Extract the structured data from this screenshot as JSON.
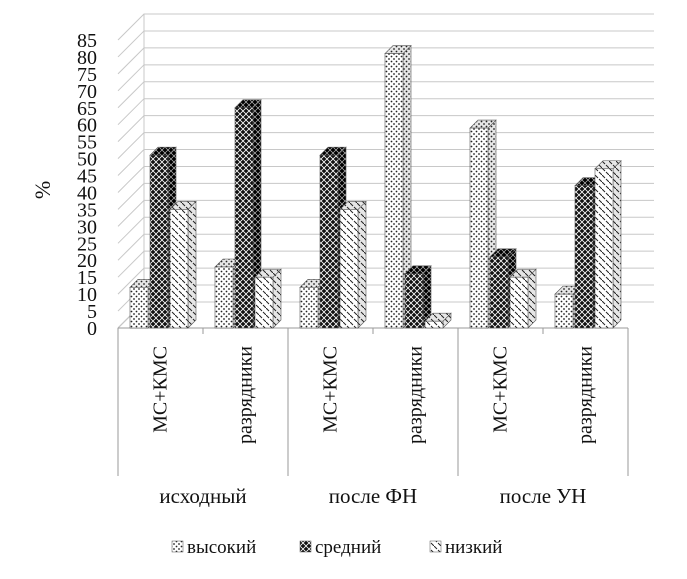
{
  "chart_data": {
    "type": "bar",
    "style": "3d-clustered",
    "ylabel": "%",
    "ylim": [
      0,
      85
    ],
    "yticks": [
      0,
      5,
      10,
      15,
      20,
      25,
      30,
      35,
      40,
      45,
      50,
      55,
      60,
      65,
      70,
      75,
      80,
      85
    ],
    "grid": true,
    "legend_position": "bottom",
    "groups": [
      "исходный",
      "после ФН",
      "после УН"
    ],
    "categories": [
      "МС+КМС",
      "разрядники",
      "МС+КМС",
      "разрядники",
      "МС+КМС",
      "разрядники"
    ],
    "series": [
      {
        "name": "высокий",
        "pattern": "dots",
        "values": [
          12,
          18,
          12,
          81,
          59,
          10
        ]
      },
      {
        "name": "средний",
        "pattern": "crosshatch",
        "values": [
          51,
          65,
          51,
          16,
          21,
          42
        ]
      },
      {
        "name": "низкий",
        "pattern": "diagonal",
        "values": [
          35,
          15,
          35,
          2,
          15,
          47
        ]
      }
    ]
  },
  "colors": {
    "axis": "#9a9a9a",
    "grid": "#c8c8c8",
    "dark": "#1a1a1a",
    "light": "#ffffff"
  }
}
